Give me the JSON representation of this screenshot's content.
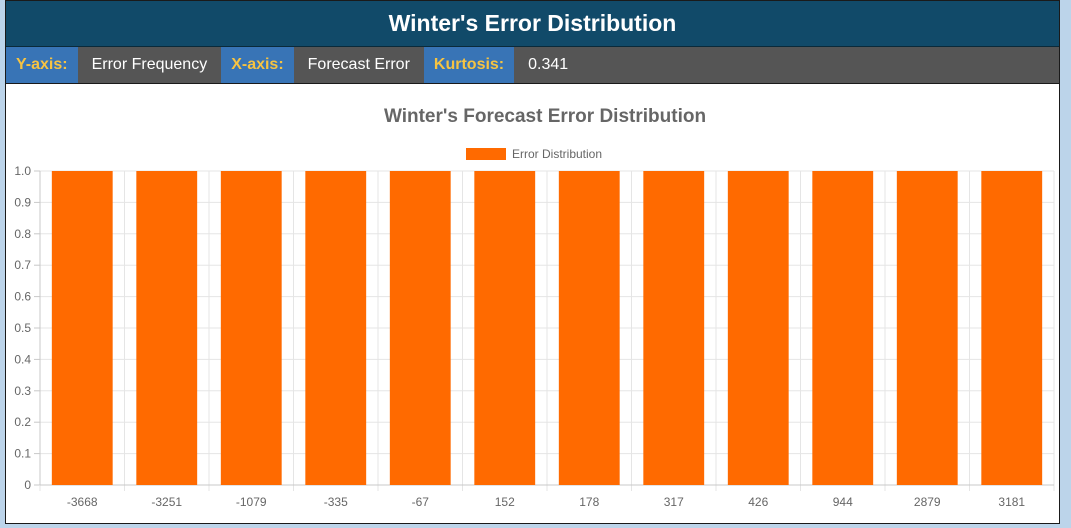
{
  "header": {
    "title": "Winter's Error Distribution"
  },
  "info": {
    "y_key": "Y-axis:",
    "y_val": "Error Frequency",
    "x_key": "X-axis:",
    "x_val": "Forecast Error",
    "k_key": "Kurtosis:",
    "k_val": "0.341"
  },
  "colors": {
    "bar": "#ff6a00",
    "title_bar": "#114a69",
    "key_bg": "#3874b6",
    "key_text": "#f6c342"
  },
  "chart_data": {
    "type": "bar",
    "title": "Winter's Forecast Error Distribution",
    "xlabel": "",
    "ylabel": "",
    "categories": [
      "-3668",
      "-3251",
      "-1079",
      "-335",
      "-67",
      "152",
      "178",
      "317",
      "426",
      "944",
      "2879",
      "3181"
    ],
    "series": [
      {
        "name": "Error Distribution",
        "values": [
          1,
          1,
          1,
          1,
          1,
          1,
          1,
          1,
          1,
          1,
          1,
          1
        ]
      }
    ],
    "ylim": [
      0,
      1
    ],
    "yticks": [
      "0",
      "0.1",
      "0.2",
      "0.3",
      "0.4",
      "0.5",
      "0.6",
      "0.7",
      "0.8",
      "0.9",
      "1.0"
    ],
    "legend": "top-center",
    "grid": true
  }
}
